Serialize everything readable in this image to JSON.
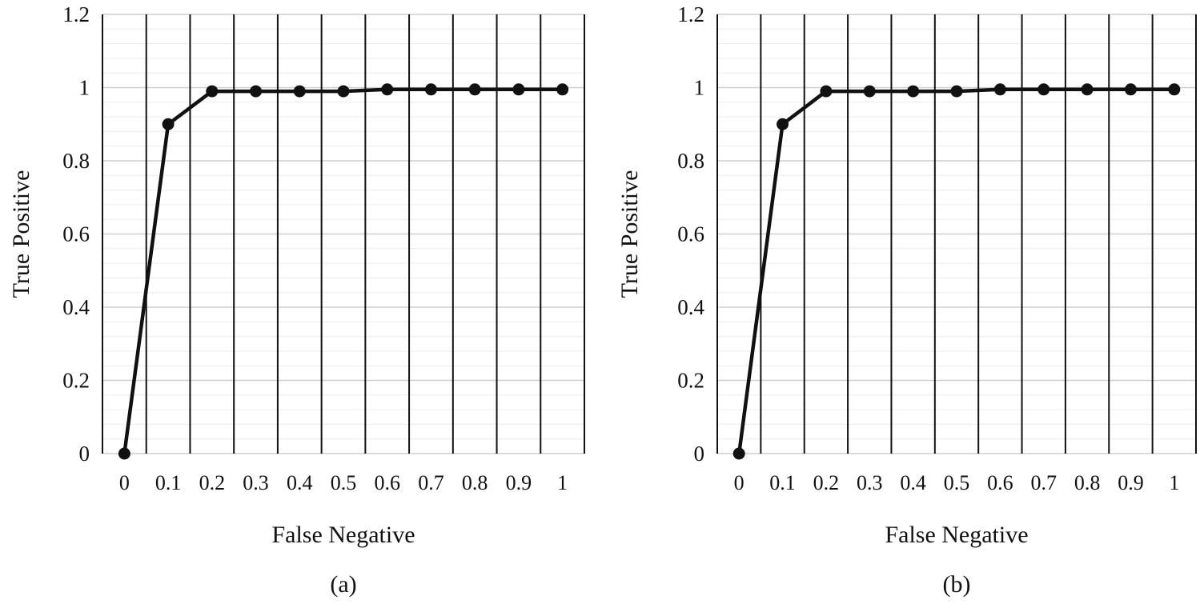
{
  "chart_data": [
    {
      "type": "line",
      "caption": "(a)",
      "xlabel": "False Negative",
      "ylabel": "True Positive",
      "categories": [
        "0",
        "0.1",
        "0.2",
        "0.3",
        "0.4",
        "0.5",
        "0.6",
        "0.7",
        "0.8",
        "0.9",
        "1"
      ],
      "values": [
        0,
        0.9,
        0.99,
        0.99,
        0.99,
        0.99,
        0.995,
        0.995,
        0.995,
        0.995,
        0.995
      ],
      "ylim": [
        0,
        1.2
      ],
      "yticks": [
        "0",
        "0.2",
        "0.4",
        "0.6",
        "0.8",
        "1",
        "1.2"
      ],
      "ytick_values": [
        0,
        0.2,
        0.4,
        0.6,
        0.8,
        1.0,
        1.2
      ],
      "grid": true,
      "legend": "none",
      "line_color": "#111111"
    },
    {
      "type": "line",
      "caption": "(b)",
      "xlabel": "False Negative",
      "ylabel": "True Positive",
      "categories": [
        "0",
        "0.1",
        "0.2",
        "0.3",
        "0.4",
        "0.5",
        "0.6",
        "0.7",
        "0.8",
        "0.9",
        "1"
      ],
      "values": [
        0,
        0.9,
        0.99,
        0.99,
        0.99,
        0.99,
        0.995,
        0.995,
        0.995,
        0.995,
        0.995
      ],
      "ylim": [
        0,
        1.2
      ],
      "yticks": [
        "0",
        "0.2",
        "0.4",
        "0.6",
        "0.8",
        "1",
        "1.2"
      ],
      "ytick_values": [
        0,
        0.2,
        0.4,
        0.6,
        0.8,
        1.0,
        1.2
      ],
      "grid": true,
      "legend": "none",
      "line_color": "#111111"
    }
  ]
}
